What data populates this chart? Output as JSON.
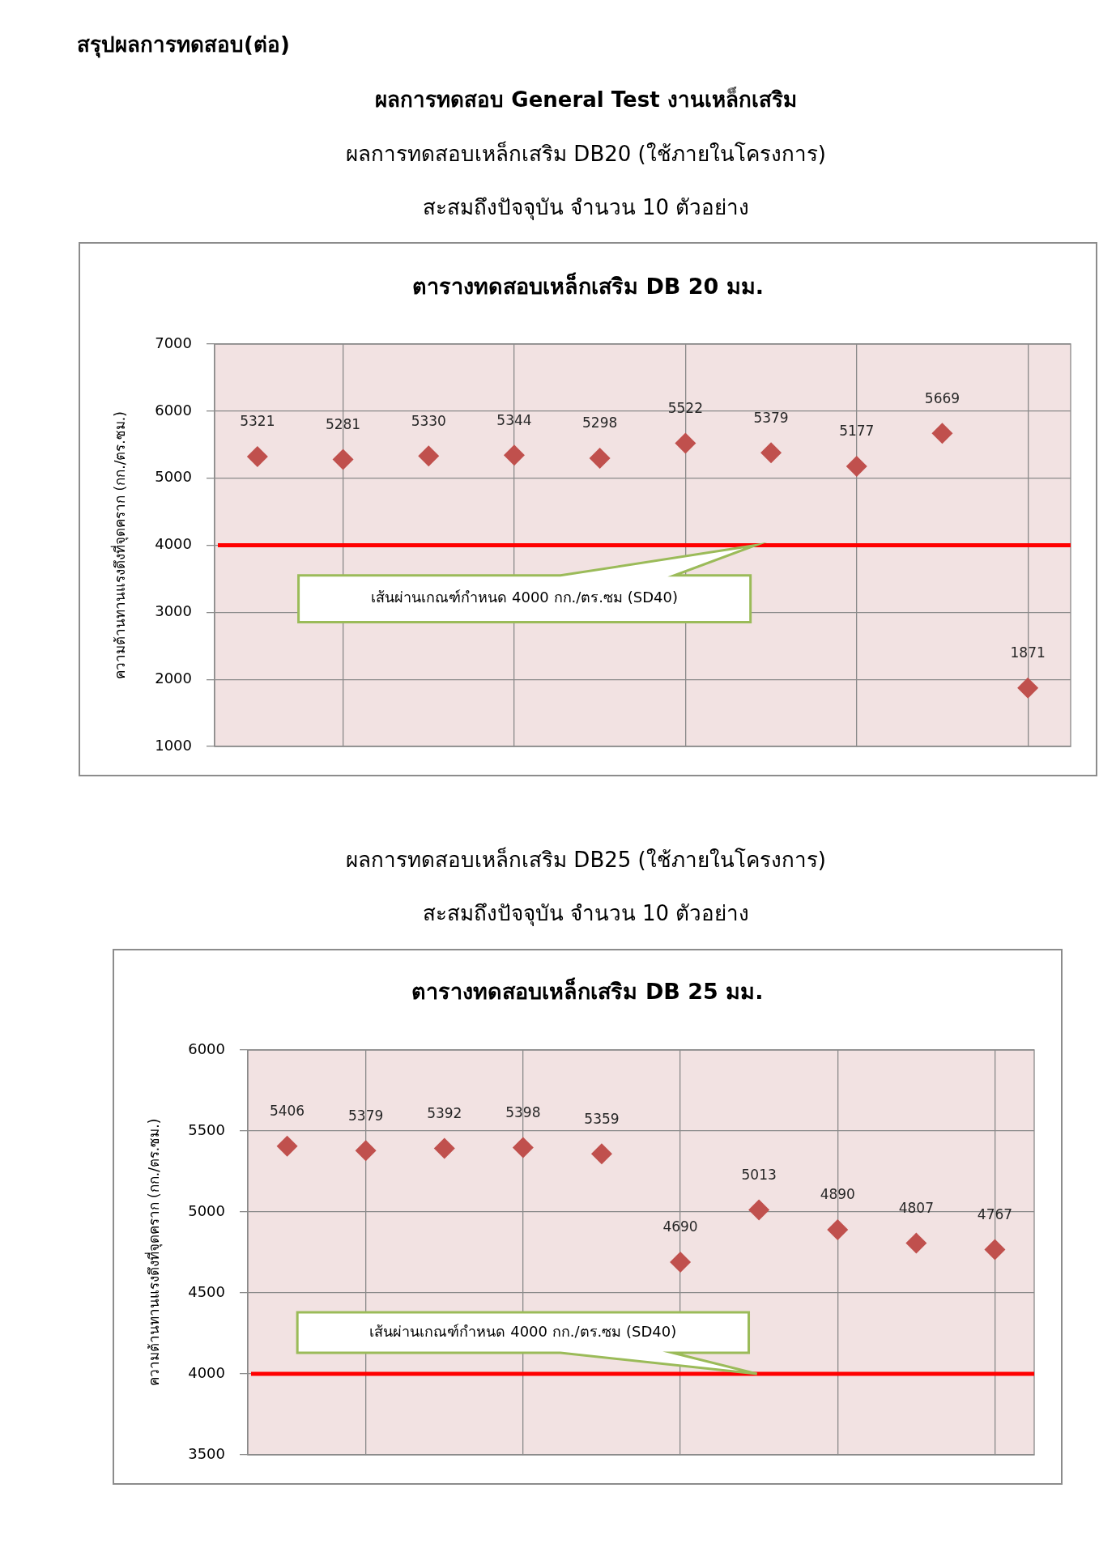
{
  "chart_data": [
    {
      "type": "scatter",
      "annotations": [
        "สรุปผลการทดสอบ(ต่อ)",
        "ผลการทดสอบ General Test งานเหล็กเสริม"
      ],
      "subtitle": "ผลการทดสอบเหล็กเสริม DB20 (ใช้ภายในโครงการ)\nสะสมถึงปัจจุบัน จำนวน 10 ตัวอย่าง",
      "title": "ตารางทดสอบเหล็กเสริม DB 20 มม.",
      "ylabel": "ความต้านทานแรงดึงที่จุดคราก (กก./ตร.ซม.)",
      "categories": [
        null,
        null,
        null,
        null,
        null,
        null,
        null,
        null,
        null,
        null
      ],
      "values": [
        5321,
        5281,
        5330,
        5344,
        5298,
        5522,
        5379,
        5177,
        5669,
        1871
      ],
      "color": "#c0504d",
      "marker": "diamond",
      "data_labels": true,
      "ylim": [
        1000,
        7000
      ],
      "yticks": [
        1000,
        2000,
        3000,
        4000,
        5000,
        6000,
        7000
      ],
      "tick_labels": "y",
      "grid": true,
      "ref_lines": [
        {
          "axis": "y",
          "value": 4000,
          "label": "เส้นผ่านเกณฑ์กำหนด 4000 กก./ตร.ซม (SD40)",
          "color": "#ff0000"
        }
      ]
    },
    {
      "type": "scatter",
      "subtitle": "ผลการทดสอบเหล็กเสริม DB25 (ใช้ภายในโครงการ)\nสะสมถึงปัจจุบัน จำนวน 10 ตัวอย่าง",
      "title": "ตารางทดสอบเหล็กเสริม DB 25 มม.",
      "ylabel": "ความต้านทานแรงดึงที่จุดคราก (กก./ตร.ซม.)",
      "categories": [
        null,
        null,
        null,
        null,
        null,
        null,
        null,
        null,
        null,
        null
      ],
      "values": [
        5406,
        5379,
        5392,
        5398,
        5359,
        4690,
        5013,
        4890,
        4807,
        4767
      ],
      "color": "#c0504d",
      "marker": "diamond",
      "data_labels": true,
      "ylim": [
        3500,
        6000
      ],
      "yticks": [
        3500,
        4000,
        4500,
        5000,
        5500,
        6000
      ],
      "tick_labels": "y",
      "grid": true,
      "ref_lines": [
        {
          "axis": "y",
          "value": 4000,
          "label": "เส้นผ่านเกณฑ์กำหนด 4000 กก./ตร.ซม (SD40)",
          "color": "#ff0000"
        }
      ]
    }
  ]
}
